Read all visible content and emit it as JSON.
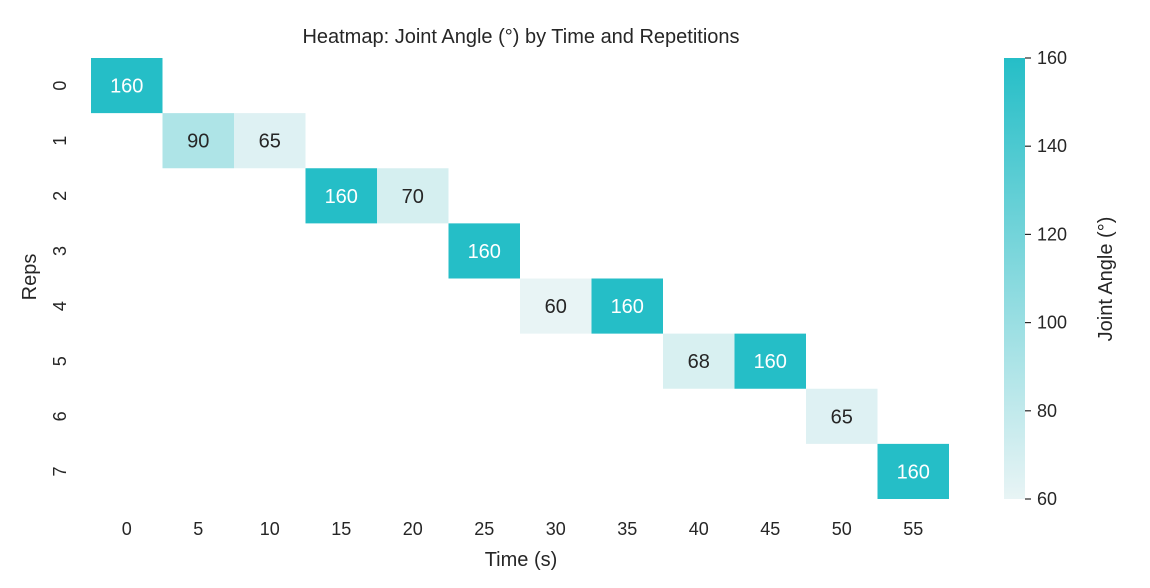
{
  "chart_data": {
    "type": "heatmap",
    "title": "Heatmap: Joint Angle (°) by Time and Repetitions",
    "xlabel": "Time (s)",
    "ylabel": "Reps",
    "x_categories": [
      "0",
      "5",
      "10",
      "15",
      "20",
      "25",
      "30",
      "35",
      "40",
      "45",
      "50",
      "55"
    ],
    "y_categories": [
      "0",
      "1",
      "2",
      "3",
      "4",
      "5",
      "6",
      "7"
    ],
    "cells": [
      {
        "rep": "0",
        "time": "0",
        "value": 160
      },
      {
        "rep": "1",
        "time": "5",
        "value": 90
      },
      {
        "rep": "1",
        "time": "10",
        "value": 65
      },
      {
        "rep": "2",
        "time": "15",
        "value": 160
      },
      {
        "rep": "2",
        "time": "20",
        "value": 70
      },
      {
        "rep": "3",
        "time": "25",
        "value": 160
      },
      {
        "rep": "4",
        "time": "30",
        "value": 60
      },
      {
        "rep": "4",
        "time": "35",
        "value": 160
      },
      {
        "rep": "5",
        "time": "40",
        "value": 68
      },
      {
        "rep": "5",
        "time": "45",
        "value": 160
      },
      {
        "rep": "6",
        "time": "50",
        "value": 65
      },
      {
        "rep": "7",
        "time": "55",
        "value": 160
      }
    ],
    "colorbar": {
      "label": "Joint Angle (°)",
      "range": [
        60,
        160
      ],
      "ticks": [
        "60",
        "80",
        "100",
        "120",
        "140",
        "160"
      ],
      "color_low": "#e8f4f5",
      "color_high": "#25bec7"
    },
    "text_color_dark": "#262626",
    "text_color_light": "#ffffff"
  }
}
